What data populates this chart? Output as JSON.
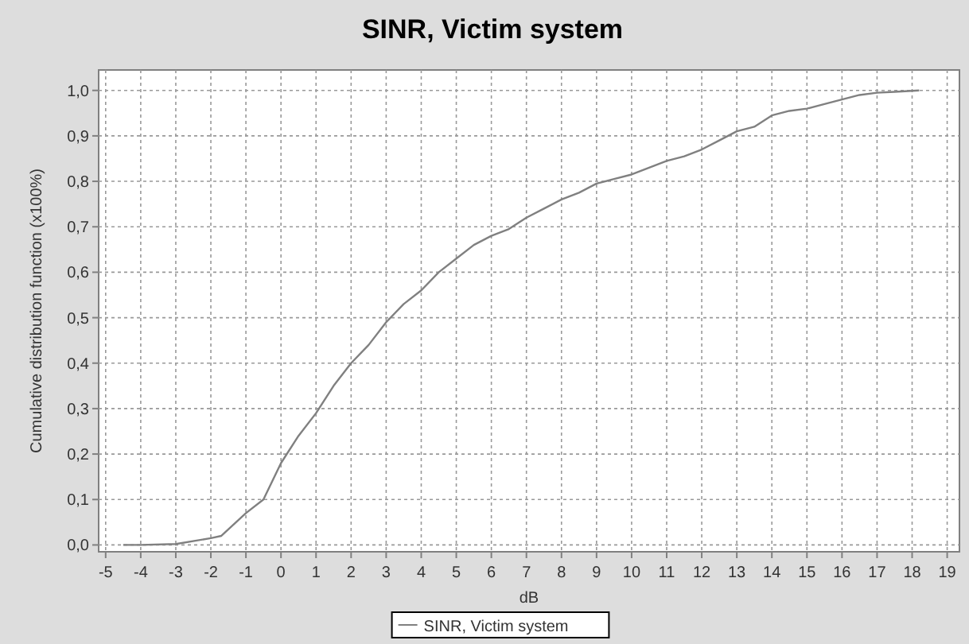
{
  "chart_data": {
    "type": "line",
    "title": "SINR, Victim system",
    "xlabel": "dB",
    "ylabel": "Cumulative distribution function (x100%)",
    "x": [
      -4.5,
      -4,
      -3,
      -2,
      -1.7,
      -1,
      -0.5,
      0,
      0.5,
      1,
      1.5,
      2,
      2.5,
      3,
      3.5,
      4,
      4.5,
      5,
      5.5,
      6,
      6.5,
      7,
      7.5,
      8,
      8.5,
      9,
      9.5,
      10,
      10.5,
      11,
      11.5,
      12,
      12.5,
      13,
      13.5,
      14,
      14.5,
      15,
      15.5,
      16,
      16.5,
      17,
      17.5,
      18.2
    ],
    "series": [
      {
        "name": "SINR, Victim system",
        "color": "#808080",
        "values": [
          0,
          0,
          0.002,
          0.015,
          0.02,
          0.07,
          0.1,
          0.18,
          0.24,
          0.29,
          0.35,
          0.4,
          0.44,
          0.49,
          0.53,
          0.56,
          0.6,
          0.63,
          0.66,
          0.68,
          0.695,
          0.72,
          0.74,
          0.76,
          0.775,
          0.795,
          0.805,
          0.815,
          0.83,
          0.845,
          0.855,
          0.87,
          0.89,
          0.91,
          0.92,
          0.945,
          0.955,
          0.96,
          0.97,
          0.98,
          0.99,
          0.995,
          0.997,
          1.0
        ]
      }
    ],
    "xlim": [
      -5.2,
      19.35
    ],
    "xticks": [
      -5,
      -4,
      -3,
      -2,
      -1,
      0,
      1,
      2,
      3,
      4,
      5,
      6,
      7,
      8,
      9,
      10,
      11,
      12,
      13,
      14,
      15,
      16,
      17,
      18,
      19
    ],
    "ylim": [
      -0.015,
      1.045
    ],
    "yticks": [
      {
        "value": 0,
        "label": "0,0"
      },
      {
        "value": 0.1,
        "label": "0,1"
      },
      {
        "value": 0.2,
        "label": "0,2"
      },
      {
        "value": 0.3,
        "label": "0,3"
      },
      {
        "value": 0.4,
        "label": "0,4"
      },
      {
        "value": 0.5,
        "label": "0,5"
      },
      {
        "value": 0.6,
        "label": "0,6"
      },
      {
        "value": 0.7,
        "label": "0,7"
      },
      {
        "value": 0.8,
        "label": "0,8"
      },
      {
        "value": 0.9,
        "label": "0,9"
      },
      {
        "value": 1,
        "label": "1,0"
      }
    ],
    "grid": true,
    "legend": "bottom",
    "line_style": "solid",
    "marker": "none"
  }
}
